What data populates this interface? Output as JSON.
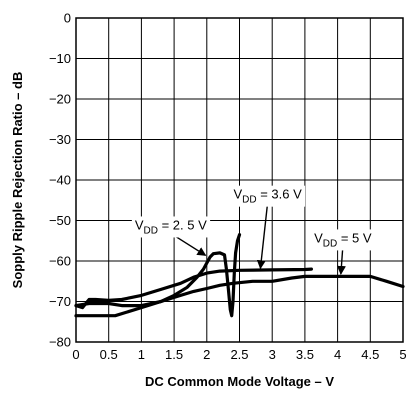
{
  "chart_data": {
    "type": "line",
    "xlabel": "DC Common Mode Voltage – V",
    "ylabel": "Sopply Ripple Rejection Ratio – dB",
    "xlim": [
      0,
      5
    ],
    "ylim": [
      -80,
      0
    ],
    "x_ticks": [
      "0",
      "0.5",
      "1",
      "1.5",
      "2",
      "2.5",
      "3",
      "3.5",
      "4",
      "4.5",
      "5"
    ],
    "y_ticks": [
      "0",
      "−10",
      "−20",
      "−30",
      "−40",
      "−50",
      "−60",
      "−70",
      "−80"
    ],
    "grid": true,
    "series": [
      {
        "name": "VDD = 2.5 V",
        "points": [
          [
            0.0,
            -73.5
          ],
          [
            0.3,
            -73.5
          ],
          [
            0.6,
            -73.5
          ],
          [
            1.0,
            -71.5
          ],
          [
            1.3,
            -70
          ],
          [
            1.5,
            -68.5
          ],
          [
            1.7,
            -66.5
          ],
          [
            1.85,
            -64
          ],
          [
            1.95,
            -62
          ],
          [
            2.0,
            -60.5
          ],
          [
            2.05,
            -59
          ],
          [
            2.1,
            -58.2
          ],
          [
            2.2,
            -58
          ],
          [
            2.27,
            -58.5
          ],
          [
            2.3,
            -62
          ],
          [
            2.33,
            -67
          ],
          [
            2.36,
            -72
          ],
          [
            2.38,
            -73.5
          ],
          [
            2.4,
            -70
          ],
          [
            2.42,
            -63
          ],
          [
            2.44,
            -58
          ],
          [
            2.47,
            -55
          ],
          [
            2.5,
            -53.5
          ]
        ]
      },
      {
        "name": "VDD = 3.6 V",
        "points": [
          [
            0.0,
            -71
          ],
          [
            0.1,
            -71.5
          ],
          [
            0.15,
            -70.5
          ],
          [
            0.2,
            -69.5
          ],
          [
            0.3,
            -69.5
          ],
          [
            0.5,
            -69.7
          ],
          [
            0.7,
            -69.5
          ],
          [
            1.0,
            -68.5
          ],
          [
            1.3,
            -67
          ],
          [
            1.6,
            -65.5
          ],
          [
            1.8,
            -64
          ],
          [
            2.0,
            -63
          ],
          [
            2.2,
            -62.5
          ],
          [
            2.5,
            -62.3
          ],
          [
            3.0,
            -62.2
          ],
          [
            3.5,
            -62.1
          ],
          [
            3.6,
            -62
          ]
        ]
      },
      {
        "name": "VDD = 5 V",
        "points": [
          [
            0.0,
            -71
          ],
          [
            0.2,
            -70.5
          ],
          [
            0.5,
            -70.5
          ],
          [
            0.7,
            -71
          ],
          [
            0.8,
            -71
          ],
          [
            1.0,
            -71
          ],
          [
            1.3,
            -70
          ],
          [
            1.6,
            -68.5
          ],
          [
            1.8,
            -67.5
          ],
          [
            2.0,
            -66.8
          ],
          [
            2.2,
            -66
          ],
          [
            2.4,
            -65.5
          ],
          [
            2.7,
            -65
          ],
          [
            3.0,
            -65
          ],
          [
            3.3,
            -64.2
          ],
          [
            3.5,
            -63.8
          ],
          [
            4.0,
            -63.8
          ],
          [
            4.5,
            -63.8
          ],
          [
            4.75,
            -65
          ],
          [
            5.0,
            -66.3
          ]
        ]
      }
    ],
    "annotations": [
      {
        "base": "V",
        "sub": "DD",
        "rest": " = 2. 5 V",
        "series_index": 0,
        "leader_from": [
          1.45,
          -53.2
        ],
        "leader_to": [
          1.98,
          -58.6
        ]
      },
      {
        "base": "V",
        "sub": "DD",
        "rest": " = 3.6 V",
        "series_index": 1,
        "leader_from": [
          2.93,
          -45.6
        ],
        "leader_to": [
          2.82,
          -61.8
        ]
      },
      {
        "base": "V",
        "sub": "DD",
        "rest": " = 5 V",
        "series_index": 2,
        "leader_from": [
          4.08,
          -56.4
        ],
        "leader_to": [
          4.05,
          -63.2
        ]
      }
    ]
  }
}
